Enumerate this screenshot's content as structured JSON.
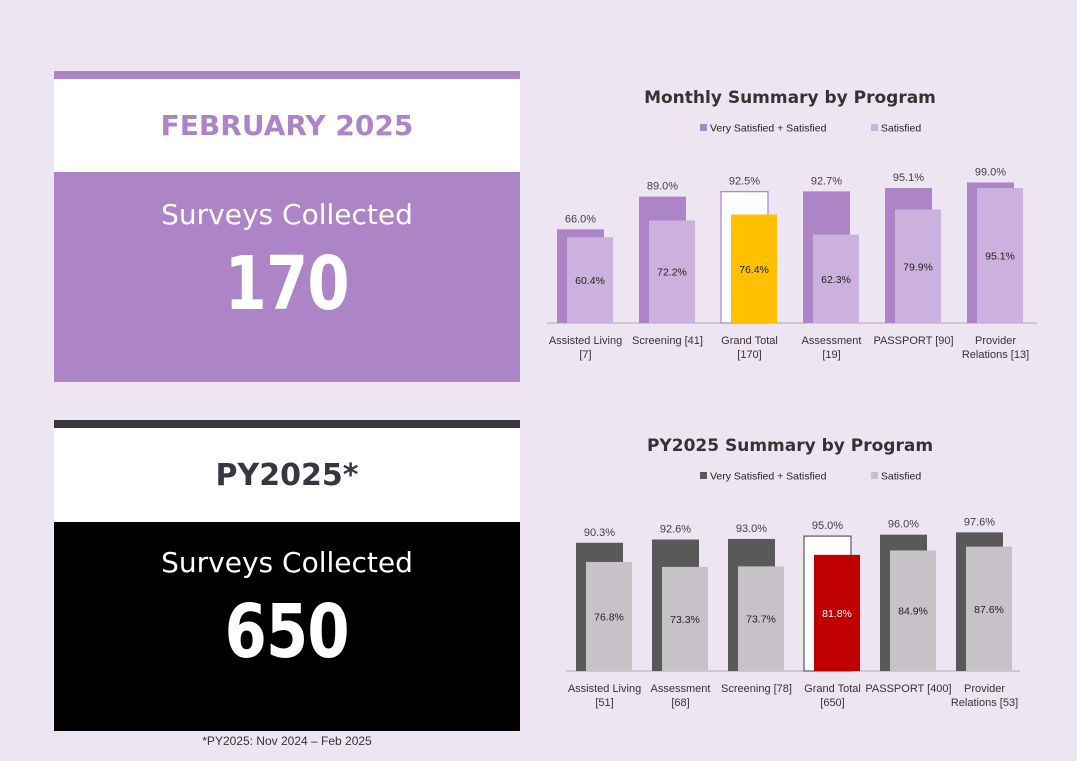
{
  "month_card": {
    "title": "FEBRUARY 2025",
    "subtitle": "Surveys Collected",
    "count": "170"
  },
  "py_card": {
    "title": "PY2025*",
    "subtitle": "Surveys Collected",
    "count": "650"
  },
  "footnote": "*PY2025: Nov 2024 – Feb 2025",
  "colors": {
    "background": "#ede6f2",
    "month_primary": "#ad84c6",
    "month_secondary": "#ccb0dd",
    "month_highlight": "#ffc000",
    "py_primary": "#595959",
    "py_secondary": "#c7c2c7",
    "py_highlight": "#c00000"
  },
  "chart_data": [
    {
      "type": "bar",
      "title": "Monthly Summary by Program",
      "legend": [
        "Very Satisfied + Satisfied",
        "Satisfied"
      ],
      "legend_position": "top",
      "categories": [
        [
          "Assisted Living",
          "[7]"
        ],
        [
          "Screening [41]"
        ],
        [
          "Grand Total",
          "[170]"
        ],
        [
          "Assessment",
          "[19]"
        ],
        [
          "PASSPORT [90]"
        ],
        [
          "Provider",
          "Relations [13]"
        ]
      ],
      "series": [
        {
          "name": "Very Satisfied + Satisfied",
          "values": [
            66.0,
            89.0,
            92.5,
            92.7,
            95.1,
            99.0
          ]
        },
        {
          "name": "Satisfied",
          "values": [
            60.4,
            72.2,
            76.4,
            62.3,
            79.9,
            95.1
          ]
        }
      ],
      "highlight_index": 2,
      "ylim": [
        0,
        100
      ],
      "grid": false
    },
    {
      "type": "bar",
      "title": "PY2025 Summary by Program",
      "legend": [
        "Very Satisfied + Satisfied",
        "Satisfied"
      ],
      "legend_position": "top",
      "categories": [
        [
          "Assisted Living",
          "[51]"
        ],
        [
          "Assessment",
          "[68]"
        ],
        [
          "Screening [78]"
        ],
        [
          "Grand Total",
          "[650]"
        ],
        [
          "PASSPORT [400]"
        ],
        [
          "Provider",
          "Relations [53]"
        ]
      ],
      "series": [
        {
          "name": "Very Satisfied + Satisfied",
          "values": [
            90.3,
            92.6,
            93.0,
            95.0,
            96.0,
            97.6
          ]
        },
        {
          "name": "Satisfied",
          "values": [
            76.8,
            73.3,
            73.7,
            81.8,
            84.9,
            87.6
          ]
        }
      ],
      "highlight_index": 3,
      "ylim": [
        0,
        100
      ],
      "grid": false
    }
  ]
}
